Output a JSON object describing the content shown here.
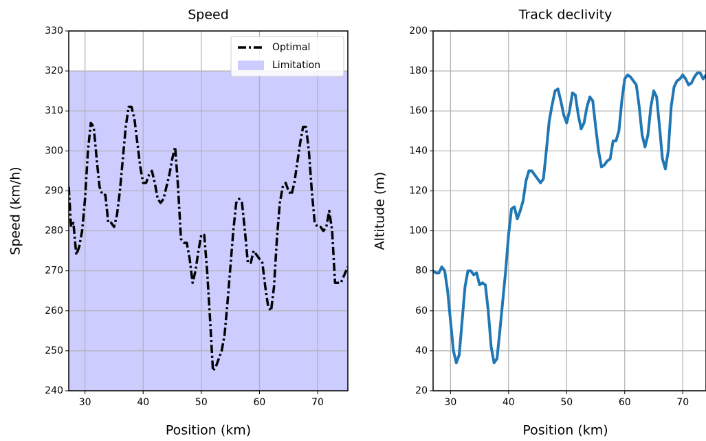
{
  "chart_data": [
    {
      "type": "line",
      "title": "Speed",
      "xlabel": "Position (km)",
      "ylabel": "Speed (km/h)",
      "xlim": [
        27.2,
        75.2
      ],
      "ylim": [
        240,
        330
      ],
      "xticks": [
        30,
        40,
        50,
        60,
        70
      ],
      "yticks": [
        240,
        250,
        260,
        270,
        280,
        290,
        300,
        310,
        320,
        330
      ],
      "grid": true,
      "legend": "upper right",
      "limitation": {
        "name": "Limitation",
        "color": "#ccccff",
        "value": 320
      },
      "x": [
        27.2,
        27.6,
        28,
        28.5,
        29,
        29.5,
        30,
        30.5,
        31,
        31.5,
        32,
        32.5,
        33,
        33.5,
        34,
        34.5,
        35,
        35.5,
        36,
        36.5,
        37,
        37.5,
        38,
        38.5,
        39,
        39.5,
        40,
        40.5,
        41,
        41.5,
        42,
        42.5,
        43,
        43.5,
        44,
        44.5,
        45,
        45.5,
        46,
        46.5,
        47,
        47.5,
        48,
        48.5,
        49,
        49.5,
        50,
        50.5,
        51,
        51.5,
        52,
        52.5,
        53,
        53.5,
        54,
        54.5,
        55,
        55.5,
        56,
        56.5,
        57,
        57.5,
        58,
        58.5,
        59,
        59.5,
        60,
        60.5,
        61,
        61.5,
        62,
        62.5,
        63,
        63.5,
        64,
        64.5,
        65,
        65.5,
        66,
        66.5,
        67,
        67.5,
        68,
        68.5,
        69,
        69.5,
        70,
        70.5,
        71,
        71.5,
        72,
        72.5,
        73,
        73.5,
        74,
        75.2
      ],
      "series": [
        {
          "name": "Optimal",
          "color": "#000000",
          "dash": true,
          "values": [
            291,
            281,
            282,
            274,
            276,
            280,
            288,
            300,
            307,
            306,
            298,
            291,
            289,
            289,
            282,
            282,
            281,
            284,
            290,
            298,
            306,
            311,
            311,
            308,
            302,
            296,
            292,
            292,
            294,
            295,
            292,
            288,
            287,
            288,
            291,
            294,
            298,
            301,
            291,
            278,
            277,
            277,
            273,
            267,
            270,
            275,
            279,
            279,
            270,
            258,
            245,
            246,
            248,
            250,
            254,
            262,
            271,
            280,
            287,
            288,
            287,
            280,
            272,
            272,
            275,
            274,
            273,
            272,
            266,
            261,
            260,
            266,
            278,
            287,
            291,
            292,
            290,
            289,
            292,
            297,
            302,
            306,
            306,
            300,
            290,
            282,
            281,
            281,
            280,
            281,
            285,
            280,
            267,
            267,
            267,
            271
          ]
        }
      ]
    },
    {
      "type": "line",
      "title": "Track declivity",
      "xlabel": "Position (km)",
      "ylabel": "Altitude (m)",
      "xlim": [
        27.0,
        74.0
      ],
      "ylim": [
        20,
        200
      ],
      "xticks": [
        30,
        40,
        50,
        60,
        70
      ],
      "yticks": [
        20,
        40,
        60,
        80,
        100,
        120,
        140,
        160,
        180,
        200
      ],
      "grid": true,
      "x": [
        27,
        27.5,
        28,
        28.5,
        29,
        29.5,
        30,
        30.5,
        31,
        31.5,
        32,
        32.5,
        33,
        33.5,
        34,
        34.5,
        35,
        35.5,
        36,
        36.5,
        37,
        37.5,
        38,
        38.5,
        39,
        39.5,
        40,
        40.5,
        41,
        41.5,
        42,
        42.5,
        43,
        43.5,
        44,
        44.5,
        45,
        45.5,
        46,
        46.5,
        47,
        47.5,
        48,
        48.5,
        49,
        49.5,
        50,
        50.5,
        51,
        51.5,
        52,
        52.5,
        53,
        53.5,
        54,
        54.5,
        55,
        55.5,
        56,
        56.5,
        57,
        57.5,
        58,
        58.5,
        59,
        59.5,
        60,
        60.5,
        61,
        61.5,
        62,
        62.5,
        63,
        63.5,
        64,
        64.5,
        65,
        65.5,
        66,
        66.5,
        67,
        67.5,
        68,
        68.5,
        69,
        69.5,
        70,
        70.5,
        71,
        71.5,
        72,
        72.5,
        73,
        73.5,
        74
      ],
      "series": [
        {
          "color": "#1f77b4",
          "values": [
            80,
            79,
            79,
            82,
            80,
            70,
            55,
            40,
            34,
            38,
            55,
            72,
            80,
            80,
            78,
            79,
            73,
            74,
            73,
            60,
            42,
            34,
            36,
            50,
            65,
            80,
            98,
            111,
            112,
            106,
            110,
            115,
            125,
            130,
            130,
            128,
            126,
            124,
            126,
            140,
            155,
            163,
            170,
            171,
            165,
            158,
            154,
            160,
            169,
            168,
            158,
            151,
            154,
            162,
            167,
            165,
            152,
            140,
            132,
            133,
            135,
            136,
            145,
            145,
            150,
            165,
            176,
            178,
            177,
            175,
            173,
            162,
            148,
            142,
            148,
            162,
            170,
            167,
            152,
            136,
            131,
            140,
            162,
            172,
            175,
            176,
            178,
            176,
            173,
            174,
            177,
            179,
            179,
            176,
            178
          ]
        }
      ]
    }
  ]
}
